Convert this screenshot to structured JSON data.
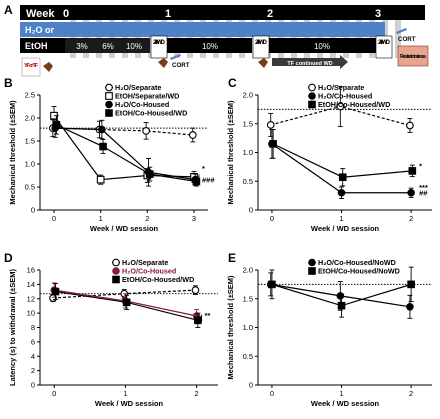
{
  "panel_A": {
    "letter": "A",
    "week_label": "Week",
    "week_ticks": [
      "0",
      "1",
      "2",
      "3"
    ],
    "row1_label": "H₂O or",
    "row2_label": "EtOH",
    "pct_labels": [
      "3%",
      "6%",
      "10%",
      "10%",
      "10%"
    ],
    "wd_labels": [
      "24 h WD",
      "24 h WD",
      "24 h WD"
    ],
    "yf_label": "YF or TF",
    "cort_labels": [
      "CORT",
      "CORT"
    ],
    "tf_continued": "TF continued WD",
    "restraint": "Restraint stress"
  },
  "chart_data": [
    {
      "panel": "B",
      "type": "line",
      "ylabel": "Mechanical threshold (±SEM)",
      "xlabel": "Week / WD session",
      "x": [
        0,
        1,
        2,
        3
      ],
      "xlim": [
        -0.3,
        3.3
      ],
      "ylim": [
        0,
        2.5
      ],
      "yticks": [
        0,
        0.5,
        1.0,
        1.5,
        2.0,
        2.5
      ],
      "ytick_labels": [
        "0",
        "0.5",
        "1.0",
        "1.5",
        "2.0",
        "2.5"
      ],
      "baseline": 1.78,
      "legend_position": "top-right",
      "series": [
        {
          "name": "H₂O/Separate",
          "values": [
            1.78,
            1.75,
            1.72,
            1.63
          ],
          "err": [
            0.18,
            0.18,
            0.18,
            0.15
          ],
          "marker": "circle-open",
          "dashed": true,
          "color": "#000000"
        },
        {
          "name": "EtOH/Separate/WD",
          "values": [
            2.05,
            0.66,
            0.75,
            0.72
          ],
          "err": [
            0.2,
            0.1,
            0.15,
            0.12
          ],
          "marker": "square-open",
          "dashed": false,
          "color": "#000000"
        },
        {
          "name": "H₂O/Co-Housed",
          "values": [
            1.78,
            1.75,
            0.82,
            0.66
          ],
          "err": [
            0.2,
            0.2,
            0.3,
            0.12
          ],
          "marker": "circle-filled",
          "dashed": false,
          "color": "#000000"
        },
        {
          "name": "EtOH/Co-Housed/WD",
          "values": [
            1.85,
            1.38,
            0.78,
            0.62
          ],
          "err": [
            0.2,
            0.15,
            0.15,
            0.1
          ],
          "marker": "square-filled",
          "dashed": false,
          "color": "#000000"
        }
      ],
      "annotations": [
        "*",
        "###"
      ]
    },
    {
      "panel": "C",
      "type": "line",
      "ylabel": "Mechanical threshold (±SEM)",
      "xlabel": "Week / WD session",
      "x": [
        0,
        1,
        2
      ],
      "xlim": [
        -0.2,
        2.3
      ],
      "ylim": [
        0,
        2.0
      ],
      "yticks": [
        0,
        0.5,
        1.0,
        1.5,
        2.0
      ],
      "ytick_labels": [
        "0",
        "0.5",
        "1.0",
        "1.5",
        "2.0"
      ],
      "baseline": 1.75,
      "legend_position": "top-right",
      "series": [
        {
          "name": "H₂O/Separate",
          "values": [
            1.48,
            1.8,
            1.47
          ],
          "err": [
            0.2,
            0.35,
            0.12
          ],
          "marker": "circle-open",
          "dashed": true,
          "color": "#000000"
        },
        {
          "name": "H₂O/Co-Housed",
          "values": [
            1.15,
            0.3,
            0.3
          ],
          "err": [
            0.25,
            0.1,
            0.08
          ],
          "marker": "circle-filled",
          "dashed": false,
          "color": "#000000"
        },
        {
          "name": "EtOH/Co-Housed/WD",
          "values": [
            1.15,
            0.57,
            0.68
          ],
          "err": [
            0.25,
            0.15,
            0.1
          ],
          "marker": "square-filled",
          "dashed": false,
          "color": "#000000"
        }
      ],
      "annotations": [
        "*",
        "***",
        "##"
      ]
    },
    {
      "panel": "D",
      "type": "line",
      "ylabel": "Latency (s) to withdrawal (±SEM)",
      "xlabel": "Week / WD session",
      "x": [
        0,
        1,
        2
      ],
      "xlim": [
        -0.2,
        2.3
      ],
      "ylim": [
        0,
        16
      ],
      "yticks": [
        0,
        2,
        4,
        6,
        8,
        10,
        12,
        14,
        16
      ],
      "ytick_labels": [
        "0",
        "2",
        "4",
        "6",
        "8",
        "10",
        "12",
        "14",
        "16"
      ],
      "baseline": 12.7,
      "legend_position": "top-right",
      "series": [
        {
          "name": "H₂O/Separate",
          "values": [
            12.1,
            12.7,
            13.2
          ],
          "err": [
            0.5,
            0.6,
            0.6
          ],
          "marker": "circle-open",
          "dashed": true,
          "color": "#000000"
        },
        {
          "name": "H₂O/Co-Housed",
          "values": [
            13.2,
            11.7,
            9.6
          ],
          "err": [
            1.0,
            1.0,
            0.9
          ],
          "marker": "circle-filled",
          "dashed": false,
          "color": "#8b1a3a"
        },
        {
          "name": "EtOH/Co-Housed/WD",
          "values": [
            13.0,
            11.5,
            9.0
          ],
          "err": [
            1.1,
            1.0,
            1.0
          ],
          "marker": "square-filled",
          "dashed": false,
          "color": "#000000"
        }
      ],
      "annotations": [
        "**"
      ]
    },
    {
      "panel": "E",
      "type": "line",
      "ylabel": "Mechanical threshold (±SEM)",
      "xlabel": "Week / WD session",
      "x": [
        0,
        1,
        2
      ],
      "xlim": [
        -0.2,
        2.3
      ],
      "ylim": [
        0,
        2.0
      ],
      "yticks": [
        0,
        0.5,
        1.0,
        1.5,
        2.0
      ],
      "ytick_labels": [
        "0",
        "0.5",
        "1.0",
        "1.5",
        "2.0"
      ],
      "baseline": 1.75,
      "legend_position": "top-right",
      "series": [
        {
          "name": "H₂O/Co-Housed/NoWD",
          "values": [
            1.75,
            1.55,
            1.36
          ],
          "err": [
            0.2,
            0.25,
            0.2
          ],
          "marker": "circle-filled",
          "dashed": false,
          "color": "#000000"
        },
        {
          "name": "EtOH/Co-Housed/NoWD",
          "values": [
            1.75,
            1.38,
            1.75
          ],
          "err": [
            0.25,
            0.2,
            0.3
          ],
          "marker": "square-filled",
          "dashed": false,
          "color": "#000000"
        }
      ],
      "annotations": []
    }
  ]
}
